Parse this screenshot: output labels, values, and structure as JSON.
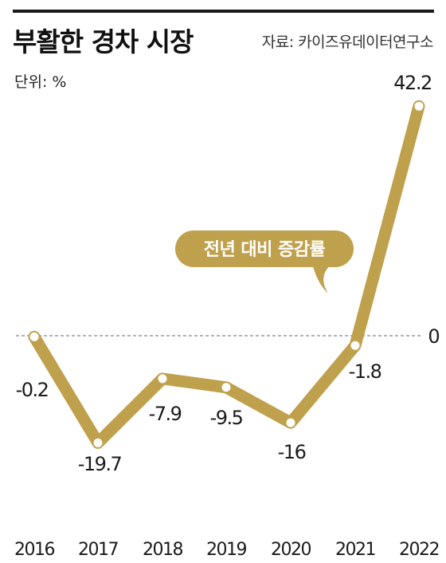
{
  "chart_data": {
    "type": "line",
    "title": "부활한 경차 시장",
    "source": "자료: 카이즈유데이터연구소",
    "unit": "단위: %",
    "zero_label": "0",
    "annotation": "전년 대비 증감률",
    "categories": [
      "2016",
      "2017",
      "2018",
      "2019",
      "2020",
      "2021",
      "2022"
    ],
    "values": [
      -0.2,
      -19.7,
      -7.9,
      -9.5,
      -16,
      -1.8,
      42.2
    ],
    "value_labels": [
      "-0.2",
      "-19.7",
      "-7.9",
      "-9.5",
      "-16",
      "-1.8",
      "42.2"
    ],
    "ylim": [
      -30,
      45
    ],
    "colors": {
      "line": "#bfa04c",
      "marker_fill": "#ffffff",
      "zero_line": "#999999",
      "text": "#1a1a1a"
    }
  }
}
